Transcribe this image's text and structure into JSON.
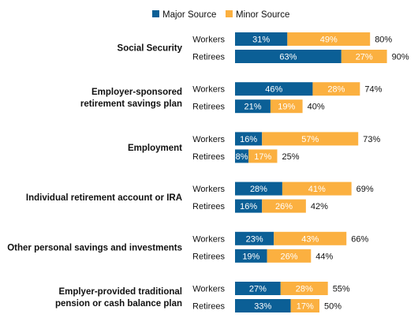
{
  "chart_data": {
    "type": "bar",
    "orientation": "horizontal",
    "stacked": true,
    "legend": {
      "position": "top",
      "items": [
        {
          "name": "Major Source",
          "color": "#0b5f96"
        },
        {
          "name": "Minor Source",
          "color": "#fbb040"
        }
      ]
    },
    "groups": [
      {
        "category": [
          "Social Security"
        ],
        "rows": [
          {
            "label": "Workers",
            "major": 31,
            "minor": 49,
            "total": 80
          },
          {
            "label": "Retirees",
            "major": 63,
            "minor": 27,
            "total": 90
          }
        ]
      },
      {
        "category": [
          "Employer-sponsored",
          "retirement savings plan"
        ],
        "rows": [
          {
            "label": "Workers",
            "major": 46,
            "minor": 28,
            "total": 74
          },
          {
            "label": "Retirees",
            "major": 21,
            "minor": 19,
            "total": 40
          }
        ]
      },
      {
        "category": [
          "Employment"
        ],
        "rows": [
          {
            "label": "Workers",
            "major": 16,
            "minor": 57,
            "total": 73
          },
          {
            "label": "Retirees",
            "major": 8,
            "minor": 17,
            "total": 25
          }
        ]
      },
      {
        "category": [
          "Individual retirement account or IRA"
        ],
        "rows": [
          {
            "label": "Workers",
            "major": 28,
            "minor": 41,
            "total": 69
          },
          {
            "label": "Retirees",
            "major": 16,
            "minor": 26,
            "total": 42
          }
        ]
      },
      {
        "category": [
          "Other personal savings and investments"
        ],
        "rows": [
          {
            "label": "Workers",
            "major": 23,
            "minor": 43,
            "total": 66
          },
          {
            "label": "Retirees",
            "major": 19,
            "minor": 26,
            "total": 44
          }
        ]
      },
      {
        "category": [
          "Emplyer-provided traditional",
          "pension or cash balance plan"
        ],
        "rows": [
          {
            "label": "Workers",
            "major": 27,
            "minor": 28,
            "total": 55
          },
          {
            "label": "Retirees",
            "major": 33,
            "minor": 17,
            "total": 50
          }
        ]
      }
    ],
    "value_suffix": "%"
  }
}
